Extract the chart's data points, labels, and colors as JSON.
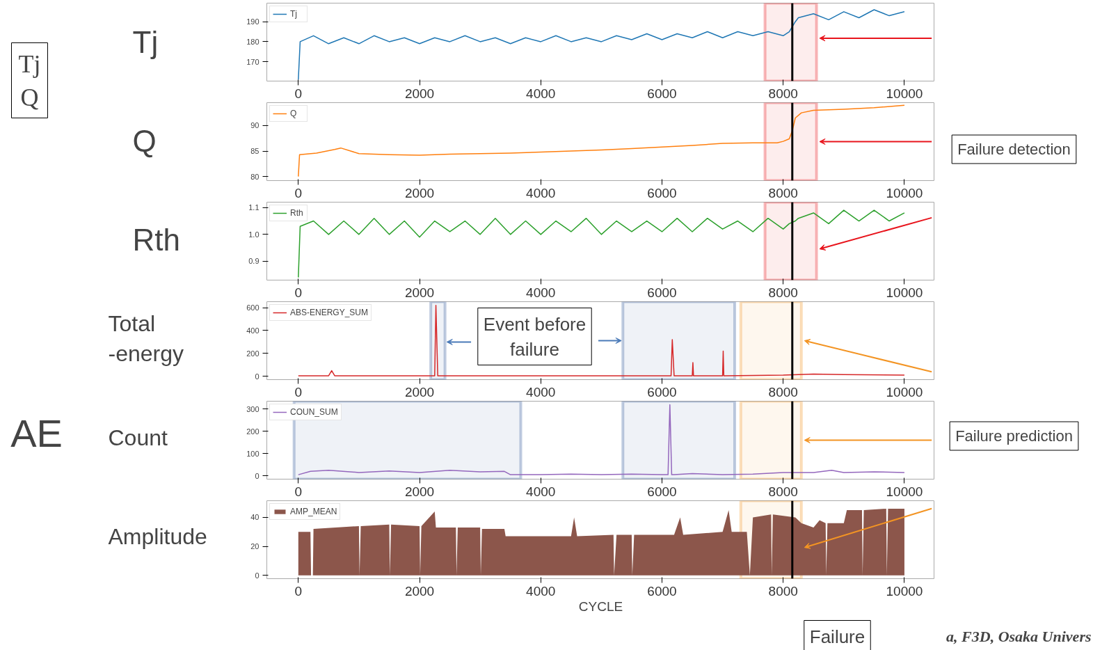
{
  "chart_data": [
    {
      "type": "line",
      "ylabel": "Tj",
      "legend": "top left",
      "grid": false,
      "xlim": [
        -520,
        10500
      ],
      "xticks": [
        0,
        2000,
        4000,
        6000,
        8000,
        10000
      ],
      "ylim": [
        160.3,
        199.3
      ],
      "yticks": [
        170,
        180,
        190
      ],
      "x": [
        0,
        30,
        250,
        500,
        750,
        1000,
        1250,
        1500,
        1750,
        2000,
        2250,
        2500,
        2750,
        3000,
        3250,
        3500,
        3750,
        4000,
        4250,
        4500,
        4750,
        5000,
        5250,
        5500,
        5750,
        6000,
        6250,
        6500,
        6750,
        7000,
        7250,
        7500,
        7750,
        8000,
        8100,
        8200,
        8250,
        8500,
        8750,
        9000,
        9250,
        9500,
        9750,
        10000
      ],
      "series": [
        {
          "name": "Tj",
          "color": "#1f77b4",
          "values": [
            161,
            180,
            183,
            179,
            182,
            179,
            183,
            180,
            182,
            179,
            182,
            180,
            183,
            180,
            182,
            179,
            182,
            180,
            183,
            180,
            182,
            180,
            183,
            181,
            184,
            181,
            184,
            182,
            185,
            182,
            185,
            183,
            185,
            183,
            185,
            190,
            192,
            194,
            191,
            195,
            192,
            196,
            193,
            195
          ]
        }
      ],
      "ref_lines": [
        {
          "axis": "x",
          "value": 8150,
          "color": "#000000"
        }
      ],
      "bands": [
        {
          "axis": "x",
          "from": 7700,
          "to": 8550,
          "color": "#e8141c"
        }
      ],
      "annotations": [
        "Tj\nQ"
      ]
    },
    {
      "type": "line",
      "ylabel": "Q",
      "legend": "top left",
      "grid": false,
      "xlim": [
        -520,
        10500
      ],
      "xticks": [
        0,
        2000,
        4000,
        6000,
        8000,
        10000
      ],
      "ylim": [
        79.2,
        94.5
      ],
      "yticks": [
        80,
        85,
        90
      ],
      "x": [
        0,
        20,
        300,
        600,
        700,
        1000,
        1500,
        2000,
        2500,
        3000,
        3500,
        4000,
        4500,
        5000,
        5500,
        6000,
        6500,
        7000,
        7500,
        7900,
        8000,
        8100,
        8150,
        8200,
        8300,
        8500,
        9000,
        9500,
        10000
      ],
      "series": [
        {
          "name": "Q",
          "color": "#ff7f0e",
          "values": [
            80,
            84.3,
            84.6,
            85.3,
            85.6,
            84.5,
            84.3,
            84.2,
            84.4,
            84.5,
            84.6,
            84.8,
            85,
            85.2,
            85.5,
            85.8,
            86.1,
            86.5,
            86.6,
            86.6,
            86.9,
            87.4,
            89,
            91.5,
            92.5,
            93,
            93.2,
            93.5,
            94
          ]
        }
      ],
      "ref_lines": [
        {
          "axis": "x",
          "value": 8150,
          "color": "#000000"
        }
      ],
      "bands": [
        {
          "axis": "x",
          "from": 7700,
          "to": 8550,
          "color": "#e8141c"
        }
      ],
      "annotations": [
        "Failure detection"
      ]
    },
    {
      "type": "line",
      "ylabel": "Rth",
      "legend": "top left",
      "grid": false,
      "xlim": [
        -520,
        10500
      ],
      "xticks": [
        0,
        2000,
        4000,
        6000,
        8000,
        10000
      ],
      "ylim": [
        0.83,
        1.12
      ],
      "yticks": [
        0.9,
        {
          "value": 1.0,
          "label": "1.0"
        },
        1.1
      ],
      "x": [
        0,
        30,
        250,
        500,
        750,
        1000,
        1250,
        1500,
        1750,
        2000,
        2250,
        2500,
        2750,
        3000,
        3250,
        3500,
        3750,
        4000,
        4250,
        4500,
        4750,
        5000,
        5250,
        5500,
        5750,
        6000,
        6250,
        6500,
        6750,
        7000,
        7250,
        7500,
        7750,
        8000,
        8100,
        8200,
        8250,
        8500,
        8750,
        9000,
        9250,
        9500,
        9750,
        10000
      ],
      "series": [
        {
          "name": "Rth",
          "color": "#2ca02c",
          "values": [
            0.84,
            1.03,
            1.05,
            1.0,
            1.05,
            1.0,
            1.06,
            1.0,
            1.05,
            0.99,
            1.05,
            1.01,
            1.05,
            1.0,
            1.06,
            1.0,
            1.05,
            1.0,
            1.05,
            1.01,
            1.06,
            1.0,
            1.05,
            1.01,
            1.05,
            1.01,
            1.06,
            1.01,
            1.06,
            1.02,
            1.05,
            1.01,
            1.06,
            1.02,
            1.04,
            1.05,
            1.06,
            1.08,
            1.04,
            1.09,
            1.05,
            1.09,
            1.05,
            1.08
          ]
        }
      ],
      "ref_lines": [
        {
          "axis": "x",
          "value": 8150,
          "color": "#000000"
        }
      ],
      "bands": [
        {
          "axis": "x",
          "from": 7700,
          "to": 8550,
          "color": "#e8141c"
        }
      ]
    },
    {
      "type": "line",
      "ylabel": "Total\n   -energy",
      "legend": "top left",
      "grid": false,
      "xlim": [
        -520,
        10500
      ],
      "xticks": [
        0,
        2000,
        4000,
        6000,
        8000,
        10000
      ],
      "ylim": [
        -29,
        652
      ],
      "yticks": [
        0,
        200,
        400,
        600
      ],
      "x": [
        0,
        500,
        550,
        600,
        2000,
        2250,
        2270,
        2300,
        4000,
        6000,
        6150,
        6170,
        6200,
        6250,
        6500,
        6510,
        6520,
        7000,
        7010,
        7020,
        8000,
        8500,
        9000,
        10000
      ],
      "series": [
        {
          "name": "ABS-ENERGY_SUM",
          "color": "#d62728",
          "values": [
            5,
            5,
            50,
            5,
            5,
            5,
            620,
            5,
            5,
            5,
            5,
            320,
            5,
            5,
            5,
            120,
            5,
            5,
            220,
            5,
            10,
            20,
            15,
            10
          ]
        }
      ],
      "ref_lines": [
        {
          "axis": "x",
          "value": 8150,
          "color": "#000000"
        }
      ],
      "bands": [
        {
          "axis": "x",
          "from": 2185,
          "to": 2420,
          "color": "#2e5597"
        },
        {
          "axis": "x",
          "from": 5355,
          "to": 7200,
          "color": "#2e5597"
        },
        {
          "axis": "x",
          "from": 7300,
          "to": 8300,
          "color": "#f39423"
        }
      ],
      "annotations": [
        {
          "text": "Event before\nfailure",
          "x": 2420,
          "y": 300
        }
      ]
    },
    {
      "type": "line",
      "ylabel": "Count",
      "legend": "top left",
      "grid": false,
      "xlim": [
        -520,
        10500
      ],
      "xticks": [
        0,
        2000,
        4000,
        6000,
        8000,
        10000
      ],
      "ylim": [
        -15,
        336
      ],
      "yticks": [
        0,
        100,
        200,
        300
      ],
      "x": [
        0,
        200,
        500,
        1000,
        1500,
        2000,
        2500,
        3000,
        3400,
        3500,
        4000,
        4500,
        5000,
        5500,
        6000,
        6100,
        6130,
        6160,
        6200,
        6500,
        7000,
        7500,
        8000,
        8500,
        8800,
        9000,
        9500,
        10000
      ],
      "series": [
        {
          "name": "COUN_SUM",
          "color": "#9467bd",
          "values": [
            5,
            20,
            25,
            15,
            22,
            15,
            25,
            18,
            20,
            5,
            5,
            8,
            5,
            8,
            5,
            5,
            320,
            5,
            5,
            10,
            5,
            8,
            15,
            15,
            25,
            15,
            18,
            15
          ]
        }
      ],
      "ref_lines": [
        {
          "axis": "x",
          "value": 8150,
          "color": "#000000"
        }
      ],
      "bands": [
        {
          "axis": "x",
          "from": -70,
          "to": 3670,
          "color": "#2e5597"
        },
        {
          "axis": "x",
          "from": 5355,
          "to": 7200,
          "color": "#2e5597"
        },
        {
          "axis": "x",
          "from": 7300,
          "to": 8300,
          "color": "#f39423"
        }
      ],
      "annotations": [
        "Failure prediction",
        "AE"
      ]
    },
    {
      "type": "area",
      "ylabel": "Amplitude",
      "xlabel": "CYCLE",
      "legend": "top left",
      "grid": false,
      "xlim": [
        -520,
        10500
      ],
      "xticks": [
        0,
        2000,
        4000,
        6000,
        8000,
        10000
      ],
      "ylim": [
        -2.3,
        51.5
      ],
      "yticks": [
        0,
        20,
        40
      ],
      "x": [
        0,
        200,
        210,
        240,
        250,
        1000,
        1010,
        1030,
        1500,
        1510,
        1530,
        2000,
        2010,
        2030,
        2250,
        2270,
        2600,
        2610,
        2630,
        3000,
        3010,
        3030,
        3400,
        3420,
        4500,
        4550,
        4600,
        5200,
        5210,
        5250,
        5500,
        5510,
        5540,
        6200,
        6300,
        6350,
        7000,
        7100,
        7150,
        7400,
        7450,
        7500,
        7800,
        7810,
        7830,
        8200,
        8300,
        8500,
        8600,
        8700,
        8710,
        8730,
        9000,
        9050,
        9300,
        9310,
        9330,
        9700,
        9710,
        9730,
        10000
      ],
      "series": [
        {
          "name": "AMP_MEAN",
          "color": "#8c564b",
          "values": [
            30,
            30,
            0,
            0,
            32,
            34,
            0,
            34,
            35,
            0,
            35,
            34,
            0,
            34,
            44,
            33,
            33,
            0,
            33,
            33,
            0,
            32,
            32,
            27,
            27,
            40,
            27,
            28,
            0,
            28,
            28,
            0,
            28,
            28,
            40,
            28,
            30,
            45,
            30,
            30,
            0,
            40,
            42,
            0,
            42,
            40,
            36,
            33,
            38,
            36,
            0,
            36,
            36,
            45,
            45,
            0,
            45,
            46,
            0,
            46,
            46
          ]
        }
      ],
      "ref_lines": [
        {
          "axis": "x",
          "value": 8150,
          "color": "#000000"
        }
      ],
      "bands": [
        {
          "axis": "x",
          "from": 7300,
          "to": 8300,
          "color": "#f39423"
        }
      ],
      "annotations": [
        "Failure",
        "a, F3D, Osaka Univers"
      ]
    }
  ]
}
